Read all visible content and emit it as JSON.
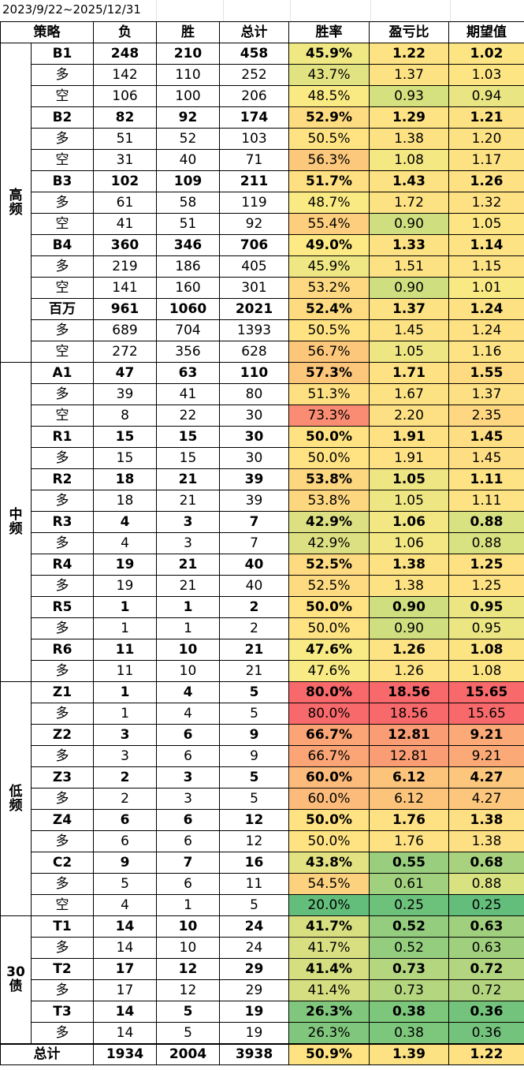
{
  "date_range": "2023/9/22~2025/12/31",
  "headers": [
    "策略",
    "负",
    "胜",
    "总计",
    "胜率",
    "盈亏比",
    "期望值"
  ],
  "colors": {
    "ramp": [
      "#63be7b",
      "#ffeb84",
      "#f8696b"
    ],
    "grid": "#000000",
    "date_grid": "#e3e3e3"
  },
  "groups": [
    {
      "name": "高\n频",
      "rows": [
        {
          "name": "B1",
          "bold": true,
          "loss": "248",
          "win": "210",
          "total": "458",
          "winrate": "45.9%",
          "pl": "1.22",
          "ev": "1.02",
          "c": [
            "#f0e883",
            "#fde383",
            "#fde583"
          ]
        },
        {
          "name": "多",
          "bold": false,
          "loss": "142",
          "win": "110",
          "total": "252",
          "winrate": "43.7%",
          "pl": "1.37",
          "ev": "1.03",
          "c": [
            "#e1e282",
            "#fde283",
            "#fde583"
          ]
        },
        {
          "name": "空",
          "bold": false,
          "loss": "106",
          "win": "100",
          "total": "206",
          "winrate": "48.5%",
          "pl": "0.93",
          "ev": "0.94",
          "c": [
            "#faea84",
            "#d5e07f",
            "#e8e582"
          ]
        },
        {
          "name": "B2",
          "bold": true,
          "loss": "82",
          "win": "92",
          "total": "174",
          "winrate": "52.9%",
          "pl": "1.29",
          "ev": "1.21",
          "c": [
            "#fddb81",
            "#fde383",
            "#fde283"
          ]
        },
        {
          "name": "多",
          "bold": false,
          "loss": "51",
          "win": "52",
          "total": "103",
          "winrate": "50.5%",
          "pl": "1.38",
          "ev": "1.20",
          "c": [
            "#ffe383",
            "#fde283",
            "#fde283"
          ]
        },
        {
          "name": "空",
          "bold": false,
          "loss": "31",
          "win": "40",
          "total": "71",
          "winrate": "56.3%",
          "pl": "1.08",
          "ev": "1.17",
          "c": [
            "#fcc97c",
            "#f4e883",
            "#fde283"
          ]
        },
        {
          "name": "B3",
          "bold": true,
          "loss": "102",
          "win": "109",
          "total": "211",
          "winrate": "51.7%",
          "pl": "1.43",
          "ev": "1.26",
          "c": [
            "#fee082",
            "#fde283",
            "#fde183"
          ]
        },
        {
          "name": "多",
          "bold": false,
          "loss": "61",
          "win": "58",
          "total": "119",
          "winrate": "48.7%",
          "pl": "1.72",
          "ev": "1.32",
          "c": [
            "#faea84",
            "#fde283",
            "#fde183"
          ]
        },
        {
          "name": "空",
          "bold": false,
          "loss": "41",
          "win": "51",
          "total": "92",
          "winrate": "55.4%",
          "pl": "0.90",
          "ev": "1.05",
          "c": [
            "#fcce7d",
            "#cfde7f",
            "#fde583"
          ]
        },
        {
          "name": "B4",
          "bold": true,
          "loss": "360",
          "win": "346",
          "total": "706",
          "winrate": "49.0%",
          "pl": "1.33",
          "ev": "1.14",
          "c": [
            "#fdea84",
            "#fde283",
            "#fde383"
          ]
        },
        {
          "name": "多",
          "bold": false,
          "loss": "219",
          "win": "186",
          "total": "405",
          "winrate": "45.9%",
          "pl": "1.51",
          "ev": "1.15",
          "c": [
            "#efe783",
            "#fde283",
            "#fde383"
          ]
        },
        {
          "name": "空",
          "bold": false,
          "loss": "141",
          "win": "160",
          "total": "301",
          "winrate": "53.2%",
          "pl": "0.90",
          "ev": "1.01",
          "c": [
            "#fdd880",
            "#cfde7f",
            "#f9e983"
          ]
        },
        {
          "name": "百万",
          "bold": true,
          "loss": "961",
          "win": "1060",
          "total": "2021",
          "winrate": "52.4%",
          "pl": "1.37",
          "ev": "1.24",
          "c": [
            "#fedb81",
            "#fde283",
            "#fde183"
          ]
        },
        {
          "name": "多",
          "bold": false,
          "loss": "689",
          "win": "704",
          "total": "1393",
          "winrate": "50.5%",
          "pl": "1.45",
          "ev": "1.24",
          "c": [
            "#ffe383",
            "#fde283",
            "#fde183"
          ]
        },
        {
          "name": "空",
          "bold": false,
          "loss": "272",
          "win": "356",
          "total": "628",
          "winrate": "56.7%",
          "pl": "1.05",
          "ev": "1.16",
          "c": [
            "#fcc77b",
            "#eee683",
            "#fde383"
          ]
        }
      ]
    },
    {
      "name": "中\n频",
      "rows": [
        {
          "name": "A1",
          "bold": true,
          "loss": "47",
          "win": "63",
          "total": "110",
          "winrate": "57.3%",
          "pl": "1.71",
          "ev": "1.55",
          "c": [
            "#fcc67b",
            "#fde183",
            "#fedb81"
          ]
        },
        {
          "name": "多",
          "bold": false,
          "loss": "39",
          "win": "41",
          "total": "80",
          "winrate": "51.3%",
          "pl": "1.67",
          "ev": "1.37",
          "c": [
            "#fedf82",
            "#fde283",
            "#fde083"
          ]
        },
        {
          "name": "空",
          "bold": false,
          "loss": "8",
          "win": "22",
          "total": "30",
          "winrate": "73.3%",
          "pl": "2.20",
          "ev": "2.35",
          "c": [
            "#fa8c73",
            "#fde083",
            "#fed780"
          ]
        },
        {
          "name": "R1",
          "bold": true,
          "loss": "15",
          "win": "15",
          "total": "30",
          "winrate": "50.0%",
          "pl": "1.91",
          "ev": "1.45",
          "c": [
            "#ffe383",
            "#fde183",
            "#fede82"
          ]
        },
        {
          "name": "多",
          "bold": false,
          "loss": "15",
          "win": "15",
          "total": "30",
          "winrate": "50.0%",
          "pl": "1.91",
          "ev": "1.45",
          "c": [
            "#ffe383",
            "#fde183",
            "#fede82"
          ]
        },
        {
          "name": "R2",
          "bold": true,
          "loss": "18",
          "win": "21",
          "total": "39",
          "winrate": "53.8%",
          "pl": "1.05",
          "ev": "1.11",
          "c": [
            "#fdd680",
            "#eee683",
            "#fde383"
          ]
        },
        {
          "name": "多",
          "bold": false,
          "loss": "18",
          "win": "21",
          "total": "39",
          "winrate": "53.8%",
          "pl": "1.05",
          "ev": "1.11",
          "c": [
            "#fdd680",
            "#eee683",
            "#fde383"
          ]
        },
        {
          "name": "R3",
          "bold": true,
          "loss": "4",
          "win": "3",
          "total": "7",
          "winrate": "42.9%",
          "pl": "1.06",
          "ev": "0.88",
          "c": [
            "#dde082",
            "#f2e783",
            "#d8e281"
          ]
        },
        {
          "name": "多",
          "bold": false,
          "loss": "4",
          "win": "3",
          "total": "7",
          "winrate": "42.9%",
          "pl": "1.06",
          "ev": "0.88",
          "c": [
            "#dde082",
            "#f2e783",
            "#d8e281"
          ]
        },
        {
          "name": "R4",
          "bold": true,
          "loss": "19",
          "win": "21",
          "total": "40",
          "winrate": "52.5%",
          "pl": "1.38",
          "ev": "1.25",
          "c": [
            "#fedb81",
            "#fde283",
            "#fde183"
          ]
        },
        {
          "name": "多",
          "bold": false,
          "loss": "19",
          "win": "21",
          "total": "40",
          "winrate": "52.5%",
          "pl": "1.38",
          "ev": "1.25",
          "c": [
            "#fedb81",
            "#fde283",
            "#fde183"
          ]
        },
        {
          "name": "R5",
          "bold": true,
          "loss": "1",
          "win": "1",
          "total": "2",
          "winrate": "50.0%",
          "pl": "0.90",
          "ev": "0.95",
          "c": [
            "#ffe383",
            "#cfde7f",
            "#ebe682"
          ]
        },
        {
          "name": "多",
          "bold": false,
          "loss": "1",
          "win": "1",
          "total": "2",
          "winrate": "50.0%",
          "pl": "0.90",
          "ev": "0.95",
          "c": [
            "#ffe383",
            "#cfde7f",
            "#ebe682"
          ]
        },
        {
          "name": "R6",
          "bold": true,
          "loss": "11",
          "win": "10",
          "total": "21",
          "winrate": "47.6%",
          "pl": "1.26",
          "ev": "1.08",
          "c": [
            "#f8ea84",
            "#fde383",
            "#fde483"
          ]
        },
        {
          "name": "多",
          "bold": false,
          "loss": "11",
          "win": "10",
          "total": "21",
          "winrate": "47.6%",
          "pl": "1.26",
          "ev": "1.08",
          "c": [
            "#f8ea84",
            "#fde383",
            "#fde483"
          ]
        }
      ]
    },
    {
      "name": "低\n频",
      "rows": [
        {
          "name": "Z1",
          "bold": true,
          "loss": "1",
          "win": "4",
          "total": "5",
          "winrate": "80.0%",
          "pl": "18.56",
          "ev": "15.65",
          "c": [
            "#f8696b",
            "#f8696b",
            "#f8696b"
          ]
        },
        {
          "name": "多",
          "bold": false,
          "loss": "1",
          "win": "4",
          "total": "5",
          "winrate": "80.0%",
          "pl": "18.56",
          "ev": "15.65",
          "c": [
            "#f8696b",
            "#f8696b",
            "#f8696b"
          ]
        },
        {
          "name": "Z2",
          "bold": true,
          "loss": "3",
          "win": "6",
          "total": "9",
          "winrate": "66.7%",
          "pl": "12.81",
          "ev": "9.21",
          "c": [
            "#fba576",
            "#fa9d75",
            "#fbaa77"
          ]
        },
        {
          "name": "多",
          "bold": false,
          "loss": "3",
          "win": "6",
          "total": "9",
          "winrate": "66.7%",
          "pl": "12.81",
          "ev": "9.21",
          "c": [
            "#fba576",
            "#fa9d75",
            "#fbaa77"
          ]
        },
        {
          "name": "Z3",
          "bold": true,
          "loss": "2",
          "win": "3",
          "total": "5",
          "winrate": "60.0%",
          "pl": "6.12",
          "ev": "4.27",
          "c": [
            "#fcbb7a",
            "#fcc47b",
            "#fcc77c"
          ]
        },
        {
          "name": "多",
          "bold": false,
          "loss": "2",
          "win": "3",
          "total": "5",
          "winrate": "60.0%",
          "pl": "6.12",
          "ev": "4.27",
          "c": [
            "#fcbb7a",
            "#fcc47b",
            "#fcc77c"
          ]
        },
        {
          "name": "Z4",
          "bold": true,
          "loss": "6",
          "win": "6",
          "total": "12",
          "winrate": "50.0%",
          "pl": "1.76",
          "ev": "1.38",
          "c": [
            "#ffe383",
            "#fde183",
            "#fde083"
          ]
        },
        {
          "name": "多",
          "bold": false,
          "loss": "6",
          "win": "6",
          "total": "12",
          "winrate": "50.0%",
          "pl": "1.76",
          "ev": "1.38",
          "c": [
            "#ffe383",
            "#fde183",
            "#fde083"
          ]
        },
        {
          "name": "C2",
          "bold": true,
          "loss": "9",
          "win": "7",
          "total": "16",
          "winrate": "43.8%",
          "pl": "0.55",
          "ev": "0.68",
          "c": [
            "#e2e282",
            "#98ce7d",
            "#a8d27e"
          ]
        },
        {
          "name": "多",
          "bold": false,
          "loss": "5",
          "win": "6",
          "total": "11",
          "winrate": "54.5%",
          "pl": "0.61",
          "ev": "0.88",
          "c": [
            "#fdd27f",
            "#a1d07e",
            "#d8e281"
          ]
        },
        {
          "name": "空",
          "bold": false,
          "loss": "4",
          "win": "1",
          "total": "5",
          "winrate": "20.0%",
          "pl": "0.25",
          "ev": "0.25",
          "c": [
            "#63be7b",
            "#6dc27b",
            "#63be7b"
          ]
        }
      ]
    },
    {
      "name": "30\n债",
      "rows": [
        {
          "name": "T1",
          "bold": true,
          "loss": "14",
          "win": "10",
          "total": "24",
          "winrate": "41.7%",
          "pl": "0.52",
          "ev": "0.63",
          "c": [
            "#d7df81",
            "#93cd7d",
            "#a0d07e"
          ]
        },
        {
          "name": "多",
          "bold": false,
          "loss": "14",
          "win": "10",
          "total": "24",
          "winrate": "41.7%",
          "pl": "0.52",
          "ev": "0.63",
          "c": [
            "#d7df81",
            "#93cd7d",
            "#a0d07e"
          ]
        },
        {
          "name": "T2",
          "bold": true,
          "loss": "17",
          "win": "12",
          "total": "29",
          "winrate": "41.4%",
          "pl": "0.73",
          "ev": "0.72",
          "c": [
            "#d5df81",
            "#b4d67f",
            "#b3d57f"
          ]
        },
        {
          "name": "多",
          "bold": false,
          "loss": "17",
          "win": "12",
          "total": "29",
          "winrate": "41.4%",
          "pl": "0.73",
          "ev": "0.72",
          "c": [
            "#d5df81",
            "#b4d67f",
            "#b3d57f"
          ]
        },
        {
          "name": "T3",
          "bold": true,
          "loss": "14",
          "win": "5",
          "total": "19",
          "winrate": "26.3%",
          "pl": "0.38",
          "ev": "0.36",
          "c": [
            "#80c67c",
            "#7dc77c",
            "#74c37c"
          ]
        },
        {
          "name": "多",
          "bold": false,
          "loss": "14",
          "win": "5",
          "total": "19",
          "winrate": "26.3%",
          "pl": "0.38",
          "ev": "0.36",
          "c": [
            "#80c67c",
            "#7dc77c",
            "#74c37c"
          ]
        }
      ]
    }
  ],
  "total": {
    "name": "总计",
    "loss": "1934",
    "win": "2004",
    "total": "3938",
    "winrate": "50.9%",
    "pl": "1.39",
    "ev": "1.22",
    "c": [
      "#ffe383",
      "#fde283",
      "#fde183"
    ]
  }
}
